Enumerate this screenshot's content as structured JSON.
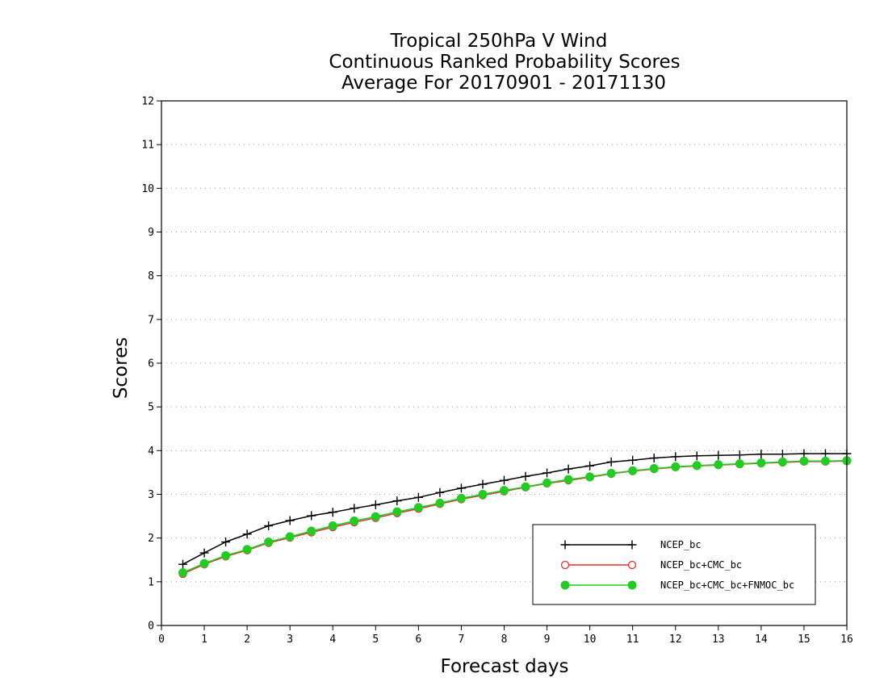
{
  "chart_data": {
    "type": "line",
    "title": [
      "Tropical 250hPa V Wind",
      "Continuous Ranked Probability Scores",
      "Average For 20170901 - 20171130"
    ],
    "xlabel": "Forecast days",
    "ylabel": "Scores",
    "xlim": [
      0,
      16
    ],
    "ylim": [
      0,
      12
    ],
    "xticks": [
      "0",
      "1",
      "2",
      "3",
      "4",
      "5",
      "6",
      "7",
      "8",
      "9",
      "10",
      "11",
      "12",
      "13",
      "14",
      "15",
      "16"
    ],
    "yticks": [
      "0",
      "1",
      "2",
      "3",
      "4",
      "5",
      "6",
      "7",
      "8",
      "9",
      "10",
      "11",
      "12"
    ],
    "grid": "horizontal dotted",
    "legend_position": "lower-right",
    "x": [
      0.5,
      1,
      1.5,
      2,
      2.5,
      3,
      3.5,
      4,
      4.5,
      5,
      5.5,
      6,
      6.5,
      7,
      7.5,
      8,
      8.5,
      9,
      9.5,
      10,
      10.5,
      11,
      11.5,
      12,
      12.5,
      13,
      13.5,
      14,
      14.5,
      15,
      15.5,
      16
    ],
    "series": [
      {
        "name": "NCEP_bc",
        "color": "#000000",
        "marker": "plus",
        "values": [
          1.4,
          1.66,
          1.91,
          2.09,
          2.28,
          2.4,
          2.51,
          2.59,
          2.68,
          2.76,
          2.85,
          2.93,
          3.04,
          3.14,
          3.23,
          3.32,
          3.41,
          3.49,
          3.58,
          3.65,
          3.74,
          3.78,
          3.83,
          3.86,
          3.88,
          3.89,
          3.9,
          3.92,
          3.92,
          3.93,
          3.93,
          3.93
        ]
      },
      {
        "name": "NCEP_bc+CMC_bc",
        "color": "#e53030",
        "marker": "open-circle",
        "values": [
          1.18,
          1.4,
          1.58,
          1.72,
          1.89,
          2.01,
          2.13,
          2.25,
          2.36,
          2.46,
          2.57,
          2.67,
          2.78,
          2.89,
          2.98,
          3.07,
          3.16,
          3.25,
          3.32,
          3.39,
          3.47,
          3.53,
          3.58,
          3.62,
          3.65,
          3.67,
          3.69,
          3.71,
          3.73,
          3.75,
          3.75,
          3.76
        ]
      },
      {
        "name": "NCEP_bc+CMC_bc+FNMOC_bc",
        "color": "#22cc22",
        "marker": "filled-circle",
        "values": [
          1.21,
          1.42,
          1.6,
          1.74,
          1.91,
          2.03,
          2.16,
          2.28,
          2.39,
          2.49,
          2.6,
          2.7,
          2.8,
          2.91,
          3.0,
          3.09,
          3.17,
          3.26,
          3.34,
          3.4,
          3.48,
          3.54,
          3.59,
          3.63,
          3.66,
          3.68,
          3.7,
          3.72,
          3.74,
          3.76,
          3.76,
          3.77
        ]
      }
    ]
  }
}
